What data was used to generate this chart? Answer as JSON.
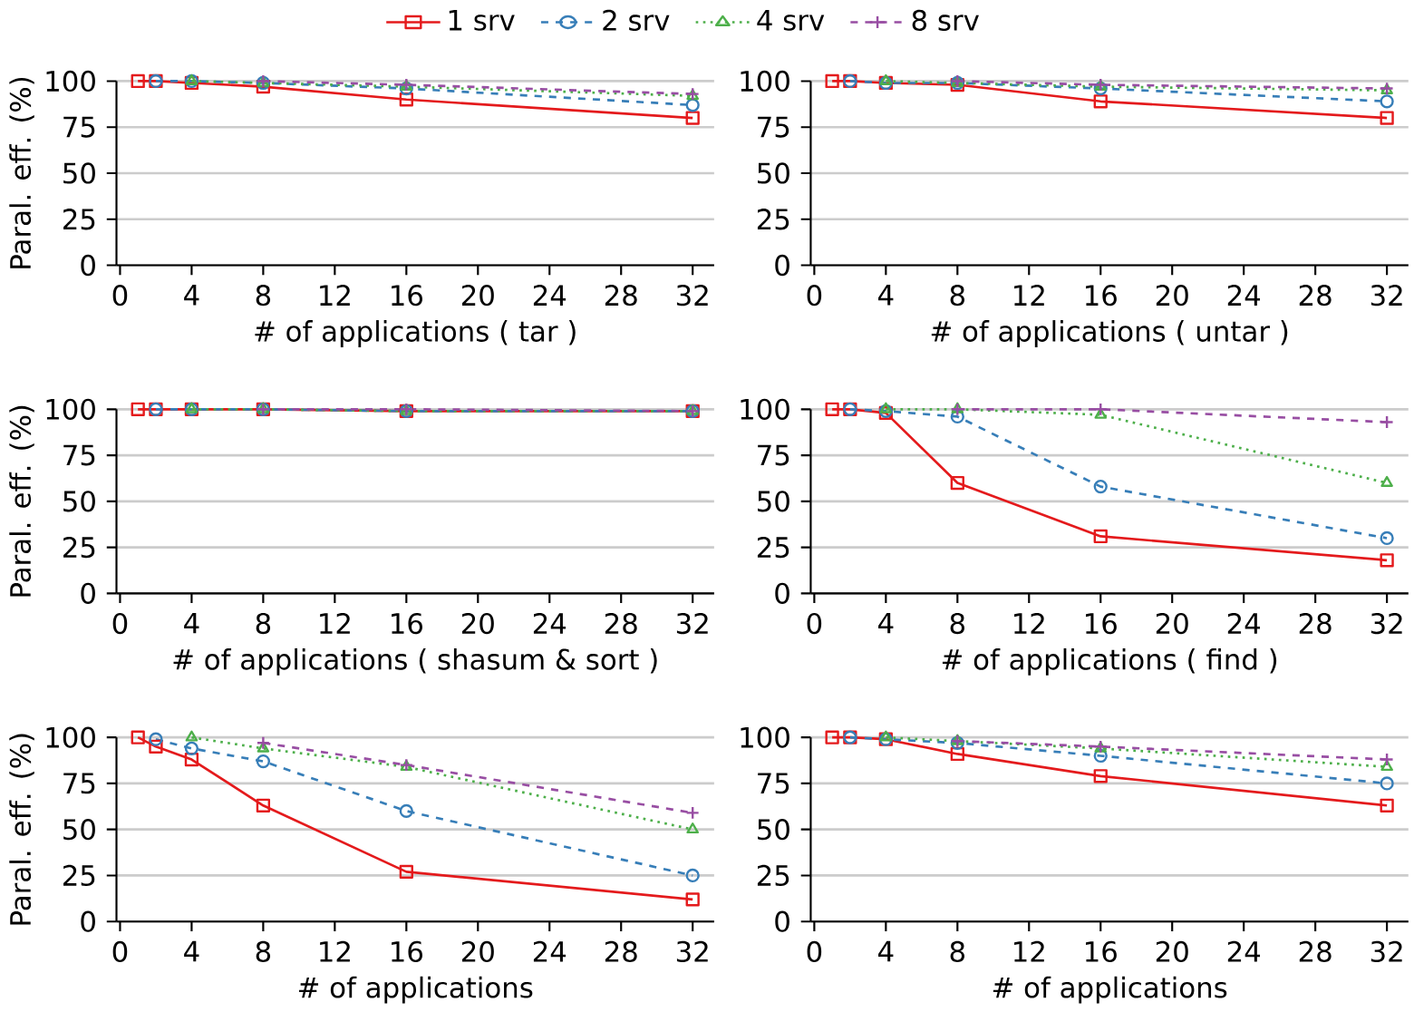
{
  "chart_data": [
    {
      "type": "line",
      "xlabel": "# of applications ( tar )",
      "ylabel": "Paral. eff. (%)",
      "xlim": [
        -0.2,
        33.2
      ],
      "ylim": [
        0,
        100
      ],
      "xticks": [
        0,
        4,
        8,
        12,
        16,
        20,
        24,
        28,
        32
      ],
      "yticks": [
        0,
        25,
        50,
        75,
        100
      ],
      "grid": "y",
      "legend": "top",
      "series": [
        {
          "name": "1 srv",
          "color": "#e41a1c",
          "marker": "square",
          "line_style": "solid",
          "x": [
            1,
            2,
            4,
            8,
            16,
            32
          ],
          "values": [
            100,
            100,
            99,
            97,
            90,
            80
          ]
        },
        {
          "name": "2 srv",
          "color": "#377eb8",
          "marker": "circle",
          "line_style": "dashed",
          "x": [
            2,
            4,
            8,
            16,
            32
          ],
          "values": [
            100,
            100,
            99,
            96,
            87
          ]
        },
        {
          "name": "4 srv",
          "color": "#4daf4a",
          "marker": "triangle",
          "line_style": "dotted",
          "x": [
            4,
            8,
            16,
            32
          ],
          "values": [
            100,
            99,
            97,
            92
          ]
        },
        {
          "name": "8 srv",
          "color": "#984ea3",
          "marker": "cross",
          "line_style": "dashed",
          "x": [
            8,
            16,
            32
          ],
          "values": [
            100,
            98,
            93
          ]
        }
      ]
    },
    {
      "type": "line",
      "xlabel": "# of applications ( untar )",
      "xlim": [
        -0.2,
        33.2
      ],
      "ylim": [
        0,
        100
      ],
      "xticks": [
        0,
        4,
        8,
        12,
        16,
        20,
        24,
        28,
        32
      ],
      "yticks": [
        0,
        25,
        50,
        75,
        100
      ],
      "grid": "y",
      "series": [
        {
          "color": "#e41a1c",
          "marker": "square",
          "line_style": "solid",
          "x": [
            1,
            2,
            4,
            8,
            16,
            32
          ],
          "values": [
            100,
            100,
            99,
            98,
            89,
            80
          ]
        },
        {
          "color": "#377eb8",
          "marker": "circle",
          "line_style": "dashed",
          "x": [
            2,
            4,
            8,
            16,
            32
          ],
          "values": [
            100,
            99,
            99,
            96,
            89
          ]
        },
        {
          "color": "#4daf4a",
          "marker": "triangle",
          "line_style": "dotted",
          "x": [
            4,
            8,
            16,
            32
          ],
          "values": [
            100,
            99,
            97,
            95
          ]
        },
        {
          "color": "#984ea3",
          "marker": "cross",
          "line_style": "dashed",
          "x": [
            8,
            16,
            32
          ],
          "values": [
            100,
            98,
            96
          ]
        }
      ]
    },
    {
      "type": "line",
      "xlabel": "# of applications ( shasum & sort )",
      "ylabel": "Paral. eff. (%)",
      "xlim": [
        -0.2,
        33.2
      ],
      "ylim": [
        0,
        100
      ],
      "xticks": [
        0,
        4,
        8,
        12,
        16,
        20,
        24,
        28,
        32
      ],
      "yticks": [
        0,
        25,
        50,
        75,
        100
      ],
      "grid": "y",
      "series": [
        {
          "color": "#e41a1c",
          "marker": "square",
          "line_style": "solid",
          "x": [
            1,
            2,
            4,
            8,
            16,
            32
          ],
          "values": [
            100,
            100,
            100,
            100,
            99,
            99
          ]
        },
        {
          "color": "#377eb8",
          "marker": "circle",
          "line_style": "dashed",
          "x": [
            2,
            4,
            8,
            16,
            32
          ],
          "values": [
            100,
            100,
            100,
            99,
            99
          ]
        },
        {
          "color": "#4daf4a",
          "marker": "triangle",
          "line_style": "dotted",
          "x": [
            4,
            8,
            16,
            32
          ],
          "values": [
            100,
            100,
            99,
            99
          ]
        },
        {
          "color": "#984ea3",
          "marker": "cross",
          "line_style": "dashed",
          "x": [
            8,
            16,
            32
          ],
          "values": [
            100,
            100,
            99
          ]
        }
      ]
    },
    {
      "type": "line",
      "xlabel": "# of applications ( find )",
      "xlim": [
        -0.2,
        33.2
      ],
      "ylim": [
        0,
        100
      ],
      "xticks": [
        0,
        4,
        8,
        12,
        16,
        20,
        24,
        28,
        32
      ],
      "yticks": [
        0,
        25,
        50,
        75,
        100
      ],
      "grid": "y",
      "series": [
        {
          "color": "#e41a1c",
          "marker": "square",
          "line_style": "solid",
          "x": [
            1,
            2,
            4,
            8,
            16,
            32
          ],
          "values": [
            100,
            100,
            98,
            60,
            31,
            18
          ]
        },
        {
          "color": "#377eb8",
          "marker": "circle",
          "line_style": "dashed",
          "x": [
            2,
            4,
            8,
            16,
            32
          ],
          "values": [
            100,
            99,
            96,
            58,
            30
          ]
        },
        {
          "color": "#4daf4a",
          "marker": "triangle",
          "line_style": "dotted",
          "x": [
            4,
            8,
            16,
            32
          ],
          "values": [
            100,
            100,
            97,
            60
          ]
        },
        {
          "color": "#984ea3",
          "marker": "cross",
          "line_style": "dashed",
          "x": [
            8,
            16,
            32
          ],
          "values": [
            100,
            100,
            93
          ]
        }
      ]
    },
    {
      "type": "line",
      "xlabel": "# of applications",
      "ylabel": "Paral. eff. (%)",
      "xlim": [
        -0.2,
        33.2
      ],
      "ylim": [
        0,
        100
      ],
      "xticks": [
        0,
        4,
        8,
        12,
        16,
        20,
        24,
        28,
        32
      ],
      "yticks": [
        0,
        25,
        50,
        75,
        100
      ],
      "grid": "y",
      "series": [
        {
          "color": "#e41a1c",
          "marker": "square",
          "line_style": "solid",
          "x": [
            1,
            2,
            4,
            8,
            16,
            32
          ],
          "values": [
            100,
            95,
            88,
            63,
            27,
            12
          ]
        },
        {
          "color": "#377eb8",
          "marker": "circle",
          "line_style": "dashed",
          "x": [
            2,
            4,
            8,
            16,
            32
          ],
          "values": [
            99,
            94,
            87,
            60,
            25
          ]
        },
        {
          "color": "#4daf4a",
          "marker": "triangle",
          "line_style": "dotted",
          "x": [
            4,
            8,
            16,
            32
          ],
          "values": [
            100,
            94,
            84,
            50
          ]
        },
        {
          "color": "#984ea3",
          "marker": "cross",
          "line_style": "dashed",
          "x": [
            8,
            16,
            32
          ],
          "values": [
            97,
            85,
            59
          ]
        }
      ]
    },
    {
      "type": "line",
      "xlabel": "# of applications",
      "xlim": [
        -0.2,
        33.2
      ],
      "ylim": [
        0,
        100
      ],
      "xticks": [
        0,
        4,
        8,
        12,
        16,
        20,
        24,
        28,
        32
      ],
      "yticks": [
        0,
        25,
        50,
        75,
        100
      ],
      "grid": "y",
      "series": [
        {
          "color": "#e41a1c",
          "marker": "square",
          "line_style": "solid",
          "x": [
            1,
            2,
            4,
            8,
            16,
            32
          ],
          "values": [
            100,
            100,
            99,
            91,
            79,
            63
          ]
        },
        {
          "color": "#377eb8",
          "marker": "circle",
          "line_style": "dashed",
          "x": [
            2,
            4,
            8,
            16,
            32
          ],
          "values": [
            100,
            99,
            97,
            90,
            75
          ]
        },
        {
          "color": "#4daf4a",
          "marker": "triangle",
          "line_style": "dotted",
          "x": [
            4,
            8,
            16,
            32
          ],
          "values": [
            100,
            98,
            94,
            84
          ]
        },
        {
          "color": "#984ea3",
          "marker": "cross",
          "line_style": "dashed",
          "x": [
            8,
            16,
            32
          ],
          "values": [
            98,
            95,
            88
          ]
        }
      ]
    }
  ]
}
